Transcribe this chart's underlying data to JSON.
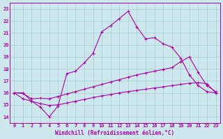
{
  "xlabel": "Windchill (Refroidissement éolien,°C)",
  "x_ticks": [
    0,
    1,
    2,
    3,
    4,
    5,
    6,
    7,
    8,
    9,
    10,
    11,
    12,
    13,
    14,
    15,
    16,
    17,
    18,
    19,
    20,
    21,
    22,
    23
  ],
  "ylim": [
    13.5,
    23.5
  ],
  "xlim": [
    -0.5,
    23.5
  ],
  "yticks": [
    14,
    15,
    16,
    17,
    18,
    19,
    20,
    21,
    22,
    23
  ],
  "bg_color": "#cce8ec",
  "line_color": "#aa00aa",
  "grid_color": "#aacccc",
  "line1_x": [
    0,
    1,
    2,
    3,
    4,
    5,
    6,
    7,
    8,
    9,
    10,
    11,
    12,
    13,
    14,
    15,
    16,
    17,
    18,
    19,
    20,
    21,
    22,
    23
  ],
  "line1_y": [
    16.0,
    16.0,
    15.3,
    14.8,
    14.0,
    14.9,
    17.6,
    17.8,
    18.5,
    19.3,
    21.1,
    21.6,
    22.2,
    22.8,
    21.5,
    20.5,
    20.6,
    20.1,
    19.8,
    18.9,
    17.5,
    16.6,
    16.1,
    16.0
  ],
  "line2_x": [
    0,
    1,
    2,
    3,
    4,
    5,
    6,
    7,
    8,
    9,
    10,
    11,
    12,
    13,
    14,
    15,
    16,
    17,
    18,
    19,
    20,
    21,
    22,
    23
  ],
  "line2_y": [
    16.0,
    15.95,
    15.5,
    15.55,
    15.5,
    15.7,
    15.9,
    16.1,
    16.3,
    16.5,
    16.7,
    16.9,
    17.1,
    17.3,
    17.5,
    17.65,
    17.8,
    17.95,
    18.1,
    18.6,
    19.0,
    17.7,
    16.6,
    16.1
  ],
  "line3_x": [
    0,
    1,
    2,
    3,
    4,
    5,
    6,
    7,
    8,
    9,
    10,
    11,
    12,
    13,
    14,
    15,
    16,
    17,
    18,
    19,
    20,
    21,
    22,
    23
  ],
  "line3_y": [
    16.0,
    15.5,
    15.3,
    15.1,
    14.95,
    15.0,
    15.15,
    15.3,
    15.45,
    15.6,
    15.75,
    15.85,
    16.0,
    16.1,
    16.2,
    16.3,
    16.4,
    16.5,
    16.6,
    16.7,
    16.8,
    16.85,
    16.75,
    16.0
  ]
}
